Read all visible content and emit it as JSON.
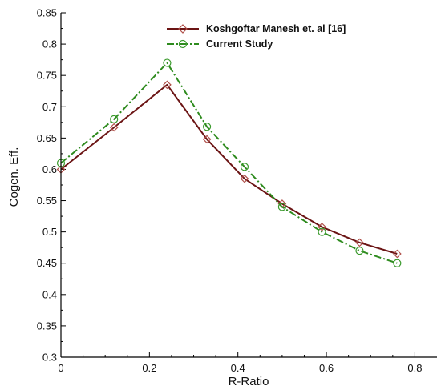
{
  "chart_data": {
    "type": "line",
    "xlabel": "R-Ratio",
    "ylabel": "Cogen. Eff.",
    "xlim": [
      0,
      0.85
    ],
    "ylim": [
      0.3,
      0.85
    ],
    "xticks": [
      0,
      0.2,
      0.4,
      0.6,
      0.8
    ],
    "xtick_labels": [
      "0",
      "0.2",
      "0.4",
      "0.6",
      "0.8"
    ],
    "yticks": [
      0.3,
      0.35,
      0.4,
      0.45,
      0.5,
      0.55,
      0.6,
      0.65,
      0.7,
      0.75,
      0.8,
      0.85
    ],
    "ytick_labels": [
      "0.3",
      "0.35",
      "0.4",
      "0.45",
      "0.5",
      "0.55",
      "0.6",
      "0.65",
      "0.7",
      "0.75",
      "0.8",
      "0.85"
    ],
    "grid": false,
    "legend_position": "top-right",
    "series": [
      {
        "name": "Koshgoftar Manesh et. al [16]",
        "color": "#6b1414",
        "line_style": "solid",
        "marker": "diamond",
        "x": [
          0,
          0.12,
          0.24,
          0.33,
          0.415,
          0.5,
          0.59,
          0.675,
          0.76
        ],
        "y": [
          0.6,
          0.667,
          0.735,
          0.648,
          0.585,
          0.545,
          0.508,
          0.483,
          0.465
        ]
      },
      {
        "name": "Current Study",
        "color": "#2e8b1e",
        "line_style": "dash-dot",
        "marker": "circle",
        "x": [
          0,
          0.12,
          0.24,
          0.33,
          0.415,
          0.5,
          0.59,
          0.675,
          0.76
        ],
        "y": [
          0.61,
          0.68,
          0.77,
          0.668,
          0.604,
          0.54,
          0.5,
          0.47,
          0.45
        ]
      }
    ]
  }
}
